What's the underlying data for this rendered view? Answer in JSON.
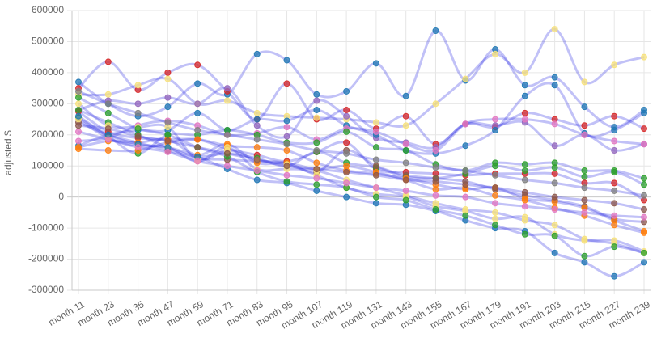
{
  "chart_data": {
    "type": "line",
    "title": "",
    "xlabel": "",
    "ylabel": "adjusted $",
    "categories": [
      "month 11",
      "month 23",
      "month 35",
      "month 47",
      "month 59",
      "month 71",
      "month 83",
      "month 95",
      "month 107",
      "month 119",
      "month 131",
      "month 143",
      "month 155",
      "month 167",
      "month 179",
      "month 191",
      "month 203",
      "month 215",
      "month 227",
      "month 239"
    ],
    "yticks": [
      -300000,
      -200000,
      -100000,
      0,
      100000,
      200000,
      300000,
      400000,
      500000,
      600000
    ],
    "ylim": [
      -300000,
      600000
    ],
    "grid": true,
    "legend": "none",
    "line_color": "rgba(50,50,230,0.30)",
    "marker_palette": [
      "#d62728",
      "#2ca02c",
      "#1f77b4",
      "#ff7f0e",
      "#9467bd",
      "#e377c2",
      "#8c564b",
      "#bcbd22",
      "#7f7f7f",
      "#17becf"
    ],
    "series": [
      {
        "values": [
          370000,
          300000,
          260000,
          290000,
          365000,
          330000,
          460000,
          440000,
          330000,
          340000,
          430000,
          325000,
          535000,
          375000,
          475000,
          360000,
          385000,
          290000,
          225000,
          280000
        ],
        "marker": "#1f77b4"
      },
      {
        "values": [
          350000,
          435000,
          345000,
          400000,
          425000,
          340000,
          250000,
          365000,
          250000,
          280000,
          220000,
          260000,
          170000,
          235000,
          225000,
          270000,
          250000,
          230000,
          260000,
          220000
        ],
        "marker": "#d62728"
      },
      {
        "values": [
          330000,
          330000,
          360000,
          380000,
          300000,
          310000,
          270000,
          260000,
          255000,
          250000,
          240000,
          230000,
          300000,
          380000,
          460000,
          400000,
          540000,
          370000,
          425000,
          450000
        ],
        "marker": "#f7e17a"
      },
      {
        "values": [
          280000,
          310000,
          300000,
          320000,
          300000,
          350000,
          230000,
          195000,
          310000,
          260000,
          190000,
          175000,
          160000,
          235000,
          230000,
          240000,
          165000,
          200000,
          150000,
          170000
        ],
        "marker": "#9467bd"
      },
      {
        "values": [
          165000,
          200000,
          215000,
          215000,
          270000,
          215000,
          250000,
          245000,
          280000,
          230000,
          200000,
          150000,
          140000,
          165000,
          215000,
          325000,
          360000,
          205000,
          215000,
          270000
        ],
        "marker": "#1f77b4"
      },
      {
        "values": [
          180000,
          190000,
          230000,
          245000,
          230000,
          200000,
          205000,
          225000,
          185000,
          220000,
          210000,
          170000,
          150000,
          235000,
          250000,
          250000,
          235000,
          200000,
          180000,
          170000
        ],
        "marker": "#e377c2"
      },
      {
        "values": [
          255000,
          195000,
          140000,
          200000,
          200000,
          215000,
          200000,
          175000,
          175000,
          210000,
          160000,
          150000,
          105000,
          85000,
          110000,
          105000,
          110000,
          85000,
          85000,
          60000
        ],
        "marker": "#2ca02c"
      },
      {
        "values": [
          275000,
          210000,
          190000,
          185000,
          185000,
          155000,
          135000,
          115000,
          145000,
          175000,
          90000,
          80000,
          75000,
          70000,
          75000,
          75000,
          75000,
          45000,
          45000,
          -10000
        ],
        "marker": "#d62728"
      },
      {
        "values": [
          280000,
          240000,
          200000,
          160000,
          130000,
          140000,
          125000,
          100000,
          145000,
          110000,
          95000,
          65000,
          60000,
          75000,
          100000,
          85000,
          95000,
          65000,
          80000,
          40000
        ],
        "marker": "#2ca02c"
      },
      {
        "values": [
          240000,
          200000,
          175000,
          150000,
          125000,
          120000,
          115000,
          110000,
          80000,
          150000,
          100000,
          70000,
          60000,
          50000,
          25000,
          5000,
          -10000,
          -30000,
          -70000,
          -80000
        ],
        "marker": "#8c564b"
      },
      {
        "values": [
          155000,
          150000,
          150000,
          175000,
          185000,
          165000,
          160000,
          150000,
          110000,
          85000,
          75000,
          60000,
          40000,
          25000,
          30000,
          -5000,
          -15000,
          -35000,
          -75000,
          -110000
        ],
        "marker": "#ff7f0e"
      },
      {
        "values": [
          160000,
          180000,
          175000,
          185000,
          135000,
          170000,
          110000,
          110000,
          90000,
          100000,
          80000,
          55000,
          25000,
          30000,
          5000,
          -10000,
          -35000,
          -60000,
          -90000,
          -115000
        ],
        "marker": "#ff7f0e"
      },
      {
        "values": [
          250000,
          190000,
          165000,
          160000,
          115000,
          160000,
          90000,
          90000,
          85000,
          55000,
          30000,
          5000,
          -20000,
          -40000,
          -50000,
          -75000,
          -90000,
          -135000,
          -150000,
          -180000
        ],
        "marker": "#f7e17a"
      },
      {
        "values": [
          300000,
          230000,
          225000,
          225000,
          120000,
          150000,
          120000,
          105000,
          70000,
          30000,
          10000,
          0,
          -30000,
          -45000,
          -70000,
          -65000,
          -120000,
          -140000,
          -140000,
          -175000
        ],
        "marker": "#f7e17a"
      },
      {
        "values": [
          260000,
          200000,
          170000,
          160000,
          130000,
          90000,
          55000,
          45000,
          20000,
          0,
          -20000,
          -25000,
          -45000,
          -75000,
          -100000,
          -110000,
          -180000,
          -210000,
          -255000,
          -210000
        ],
        "marker": "#1f77b4"
      },
      {
        "values": [
          320000,
          270000,
          220000,
          200000,
          160000,
          130000,
          80000,
          50000,
          40000,
          30000,
          0,
          -10000,
          -40000,
          -60000,
          -90000,
          -120000,
          -125000,
          -190000,
          -160000,
          -180000
        ],
        "marker": "#2ca02c"
      },
      {
        "values": [
          210000,
          185000,
          160000,
          145000,
          115000,
          100000,
          85000,
          70000,
          60000,
          45000,
          30000,
          20000,
          5000,
          0,
          -20000,
          -30000,
          -40000,
          -50000,
          -60000,
          -65000
        ],
        "marker": "#e377c2"
      },
      {
        "values": [
          230000,
          220000,
          195000,
          180000,
          160000,
          140000,
          120000,
          100000,
          90000,
          80000,
          70000,
          55000,
          50000,
          40000,
          30000,
          15000,
          0,
          -10000,
          -20000,
          -40000
        ],
        "marker": "#8c564b"
      },
      {
        "values": [
          340000,
          300000,
          270000,
          240000,
          215000,
          200000,
          185000,
          170000,
          150000,
          140000,
          120000,
          110000,
          95000,
          85000,
          70000,
          55000,
          45000,
          30000,
          20000,
          5000
        ],
        "marker": "#7f7f7f"
      }
    ]
  }
}
